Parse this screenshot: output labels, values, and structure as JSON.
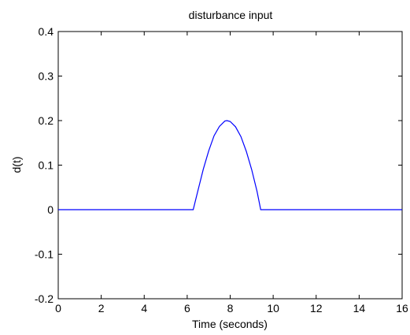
{
  "chart_data": {
    "type": "line",
    "title": "disturbance input",
    "xlabel": "Time (seconds)",
    "ylabel": "d(t)",
    "xlim": [
      0,
      16
    ],
    "ylim": [
      -0.2,
      0.4
    ],
    "xticks": [
      "0",
      "2",
      "4",
      "6",
      "8",
      "10",
      "12",
      "14",
      "16"
    ],
    "yticks": [
      "-0.2",
      "-0.1",
      "0",
      "0.1",
      "0.2",
      "0.3",
      "0.4"
    ],
    "grid": false,
    "series": [
      {
        "color": "#0000ff",
        "x": [
          0,
          6.28,
          6.5,
          6.75,
          7.0,
          7.25,
          7.5,
          7.75,
          7.85,
          8.0,
          8.25,
          8.5,
          8.75,
          9.0,
          9.25,
          9.42,
          16
        ],
        "y": [
          0,
          0,
          0.043,
          0.091,
          0.132,
          0.166,
          0.187,
          0.199,
          0.2,
          0.198,
          0.186,
          0.164,
          0.131,
          0.09,
          0.041,
          0,
          0
        ]
      }
    ]
  }
}
